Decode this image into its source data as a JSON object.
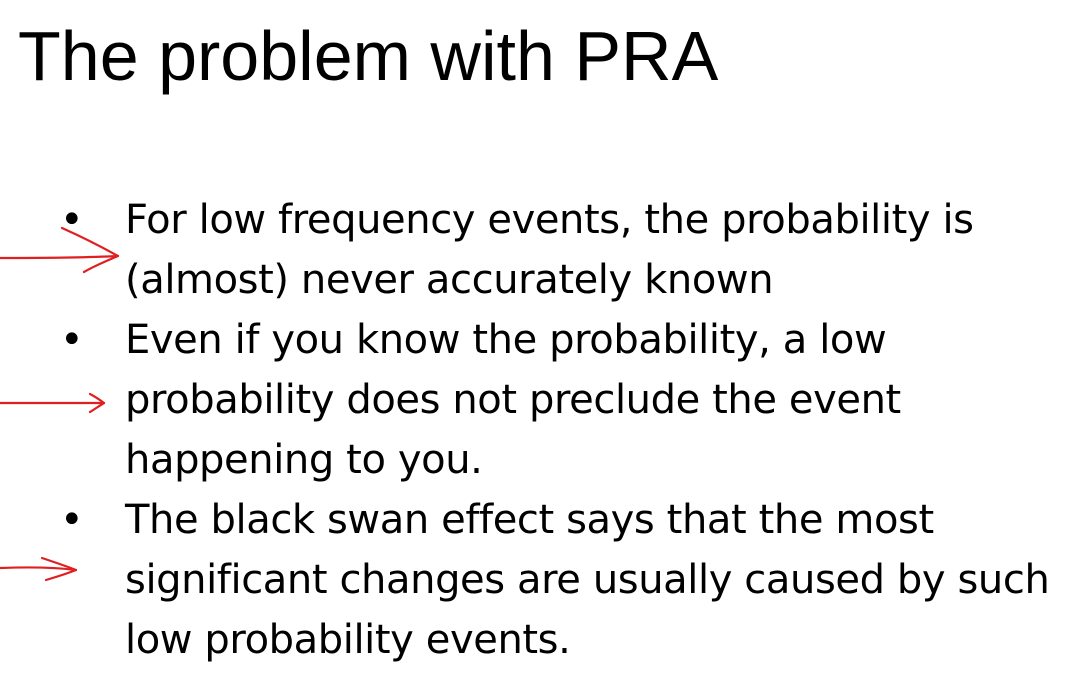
{
  "slide": {
    "title": "The problem with PRA",
    "bullet_symbol": "•",
    "bullets": [
      {
        "text": "For low frequency events, the probability is (almost) never accurately known"
      },
      {
        "text": "Even if you know the probability, a low probability does not preclude the event happening to you."
      },
      {
        "text": "The black swan effect says that the most significant changes are usually caused by such low probability events."
      }
    ],
    "annotation_color": "#e02020",
    "annotation_icon": "hand-drawn-arrow-icon"
  }
}
